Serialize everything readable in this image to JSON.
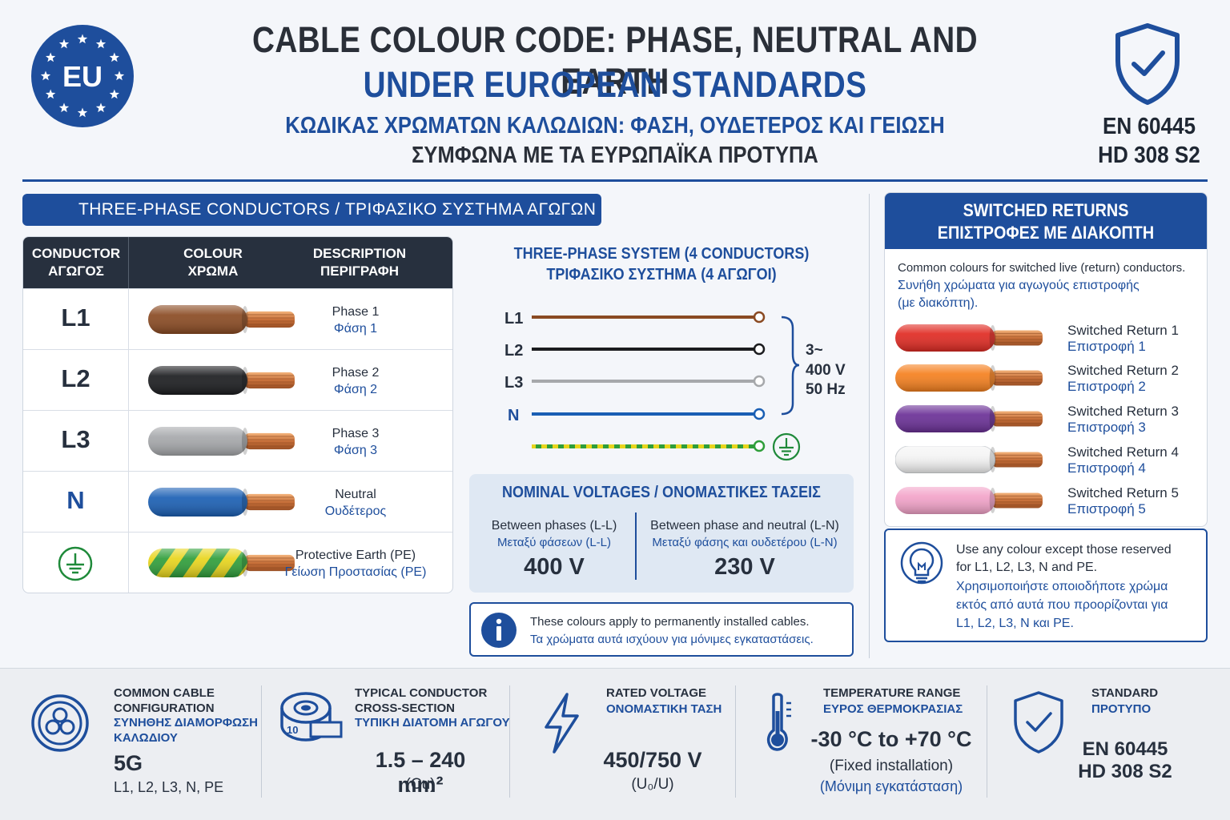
{
  "header": {
    "badge": "EU",
    "title_en_1": "CABLE COLOUR CODE: PHASE, NEUTRAL AND EARTH",
    "title_en_2": "UNDER EUROPEAN STANDARDS",
    "title_gr_1": "ΚΩΔΙΚΑΣ ΧΡΩΜΑΤΩΝ ΚΑΛΩΔΙΩΝ: ΦΑΣΗ, ΟΥΔΕΤΕΡΟΣ ΚΑΙ ΓΕΙΩΣΗ",
    "title_gr_2": "ΣΥΜΦΩΝΑ ΜΕ ΤΑ ΕΥΡΩΠΑΪΚΑ ΠΡΟΤΥΠΑ",
    "standard_1": "EN 60445",
    "standard_2": "HD 308 S2"
  },
  "left": {
    "banner": "THREE-PHASE CONDUCTORS / ΤΡΙΦΑΣΙΚΟ ΣΥΣΤΗΜΑ ΑΓΩΓΩΝ",
    "headers": {
      "col1_en": "CONDUCTOR",
      "col1_gr": "ΑΓΩΓΟΣ",
      "col2_en": "COLOUR",
      "col2_gr": "ΧΡΩΜΑ",
      "col3_en": "DESCRIPTION",
      "col3_gr": "ΠΕΡΙΓΡΑΦΗ"
    },
    "rows": [
      {
        "code": "L1",
        "desc_en": "Phase 1",
        "desc_gr": "Φάση 1",
        "color": "#8a4a22"
      },
      {
        "code": "L2",
        "desc_en": "Phase 2",
        "desc_gr": "Φάση 2",
        "color": "#1b1c1f"
      },
      {
        "code": "L3",
        "desc_en": "Phase 3",
        "desc_gr": "Φάση 3",
        "color": "#a6a8ab"
      },
      {
        "code": "N",
        "desc_en": "Neutral",
        "desc_gr": "Ουδέτερος",
        "color": "#1a5fb4"
      },
      {
        "code": "",
        "desc_en": "Protective Earth (PE)",
        "desc_gr": "Γείωση Προστασίας (PE)",
        "color": "green-yellow",
        "icon": "earth-icon"
      }
    ]
  },
  "middle": {
    "title_en": "THREE-PHASE SYSTEM (4 CONDUCTORS)",
    "title_gr": "ΤΡΙΦΑΣΙΚΟ ΣΥΣΤΗΜΑ (4 ΑΓΩΓΟΙ)",
    "lines": [
      {
        "label": "L1",
        "color": "#8a4a22"
      },
      {
        "label": "L2",
        "color": "#1b1c1f"
      },
      {
        "label": "L3",
        "color": "#a6a8ab"
      },
      {
        "label": "N",
        "color": "#1a5fb4"
      },
      {
        "label": "",
        "color": "green-yellow"
      }
    ],
    "supply": [
      "3~",
      "400 V",
      "50 Hz"
    ],
    "nominal": {
      "title": "NOMINAL VOLTAGES / ΟΝΟΜΑΣΤΙΚΕΣ ΤΑΣΕΙΣ",
      "ll_en": "Between phases (L-L)",
      "ll_gr": "Μεταξύ φάσεων (L-L)",
      "ll_value": "400 V",
      "ln_en": "Between phase and neutral (L-N)",
      "ln_gr": "Μεταξύ φάσης και ουδετέρου (L-N)",
      "ln_value": "230 V"
    },
    "info_en": "These colours apply to permanently installed cables.",
    "info_gr": "Τα χρώματα αυτά ισχύουν για μόνιμες εγκαταστάσεις."
  },
  "right": {
    "title_en": "SWITCHED RETURNS",
    "title_gr": "ΕΠΙΣΤΡΟΦΕΣ ΜΕ ΔΙΑΚΟΠΤΗ",
    "intro_en": "Common colours for switched live (return) conductors.",
    "intro_gr_1": "Συνήθη χρώματα για αγωγούς επιστροφής",
    "intro_gr_2": "(με διακόπτη).",
    "returns": [
      {
        "en": "Switched Return 1",
        "gr": "Επιστροφή 1",
        "color": "#e02a22"
      },
      {
        "en": "Switched Return 2",
        "gr": "Επιστροφή 2",
        "color": "#f5801e"
      },
      {
        "en": "Switched Return 3",
        "gr": "Επιστροφή 3",
        "color": "#6a2f96"
      },
      {
        "en": "Switched Return 4",
        "gr": "Επιστροφή 4",
        "color": "#f4f4f4"
      },
      {
        "en": "Switched Return 5",
        "gr": "Επιστροφή 5",
        "color": "#f3a3c9"
      }
    ],
    "tip_en_1": "Use any colour except those reserved",
    "tip_en_2": "for L1, L2, L3, N and PE.",
    "tip_gr_1": "Χρησιμοποιήστε οποιοδήποτε χρώμα",
    "tip_gr_2": "εκτός από αυτά που προορίζονται για",
    "tip_gr_3": "L1, L2, L3, N και PE."
  },
  "footer": {
    "config": {
      "l1": "COMMON CABLE",
      "l2": "CONFIGURATION",
      "g1": "ΣΥΝΗΘΗΣ ΔΙΑΜΟΡΦΩΣΗ",
      "g2": "ΚΑΛΩΔΙΟΥ",
      "value": "5G",
      "sub": "L1, L2, L3, N, PE"
    },
    "section": {
      "l1": "TYPICAL CONDUCTOR",
      "l2": "CROSS-SECTION",
      "g1": "ΤΥΠΙΚΗ ΔΙΑΤΟΜΗ ΑΓΩΓΟΥ",
      "value": "1.5 – 240 mm²",
      "sub": "(Cu)"
    },
    "voltage": {
      "l1": "RATED VOLTAGE",
      "g1": "ΟΝΟΜΑΣΤΙΚΗ ΤΑΣΗ",
      "value": "450/750 V",
      "sub": "(U₀/U)"
    },
    "temperature": {
      "l1": "TEMPERATURE RANGE",
      "g1": "ΕΥΡΟΣ ΘΕΡΜΟΚΡΑΣΙΑΣ",
      "value": "-30 °C to +70 °C",
      "sub": "(Fixed installation)",
      "sub_gr": "(Μόνιμη εγκατάσταση)"
    },
    "standard": {
      "l1": "STANDARD",
      "g1": "ΠΡΟΤΥΠΟ",
      "v1": "EN 60445",
      "v2": "HD 308 S2"
    }
  }
}
